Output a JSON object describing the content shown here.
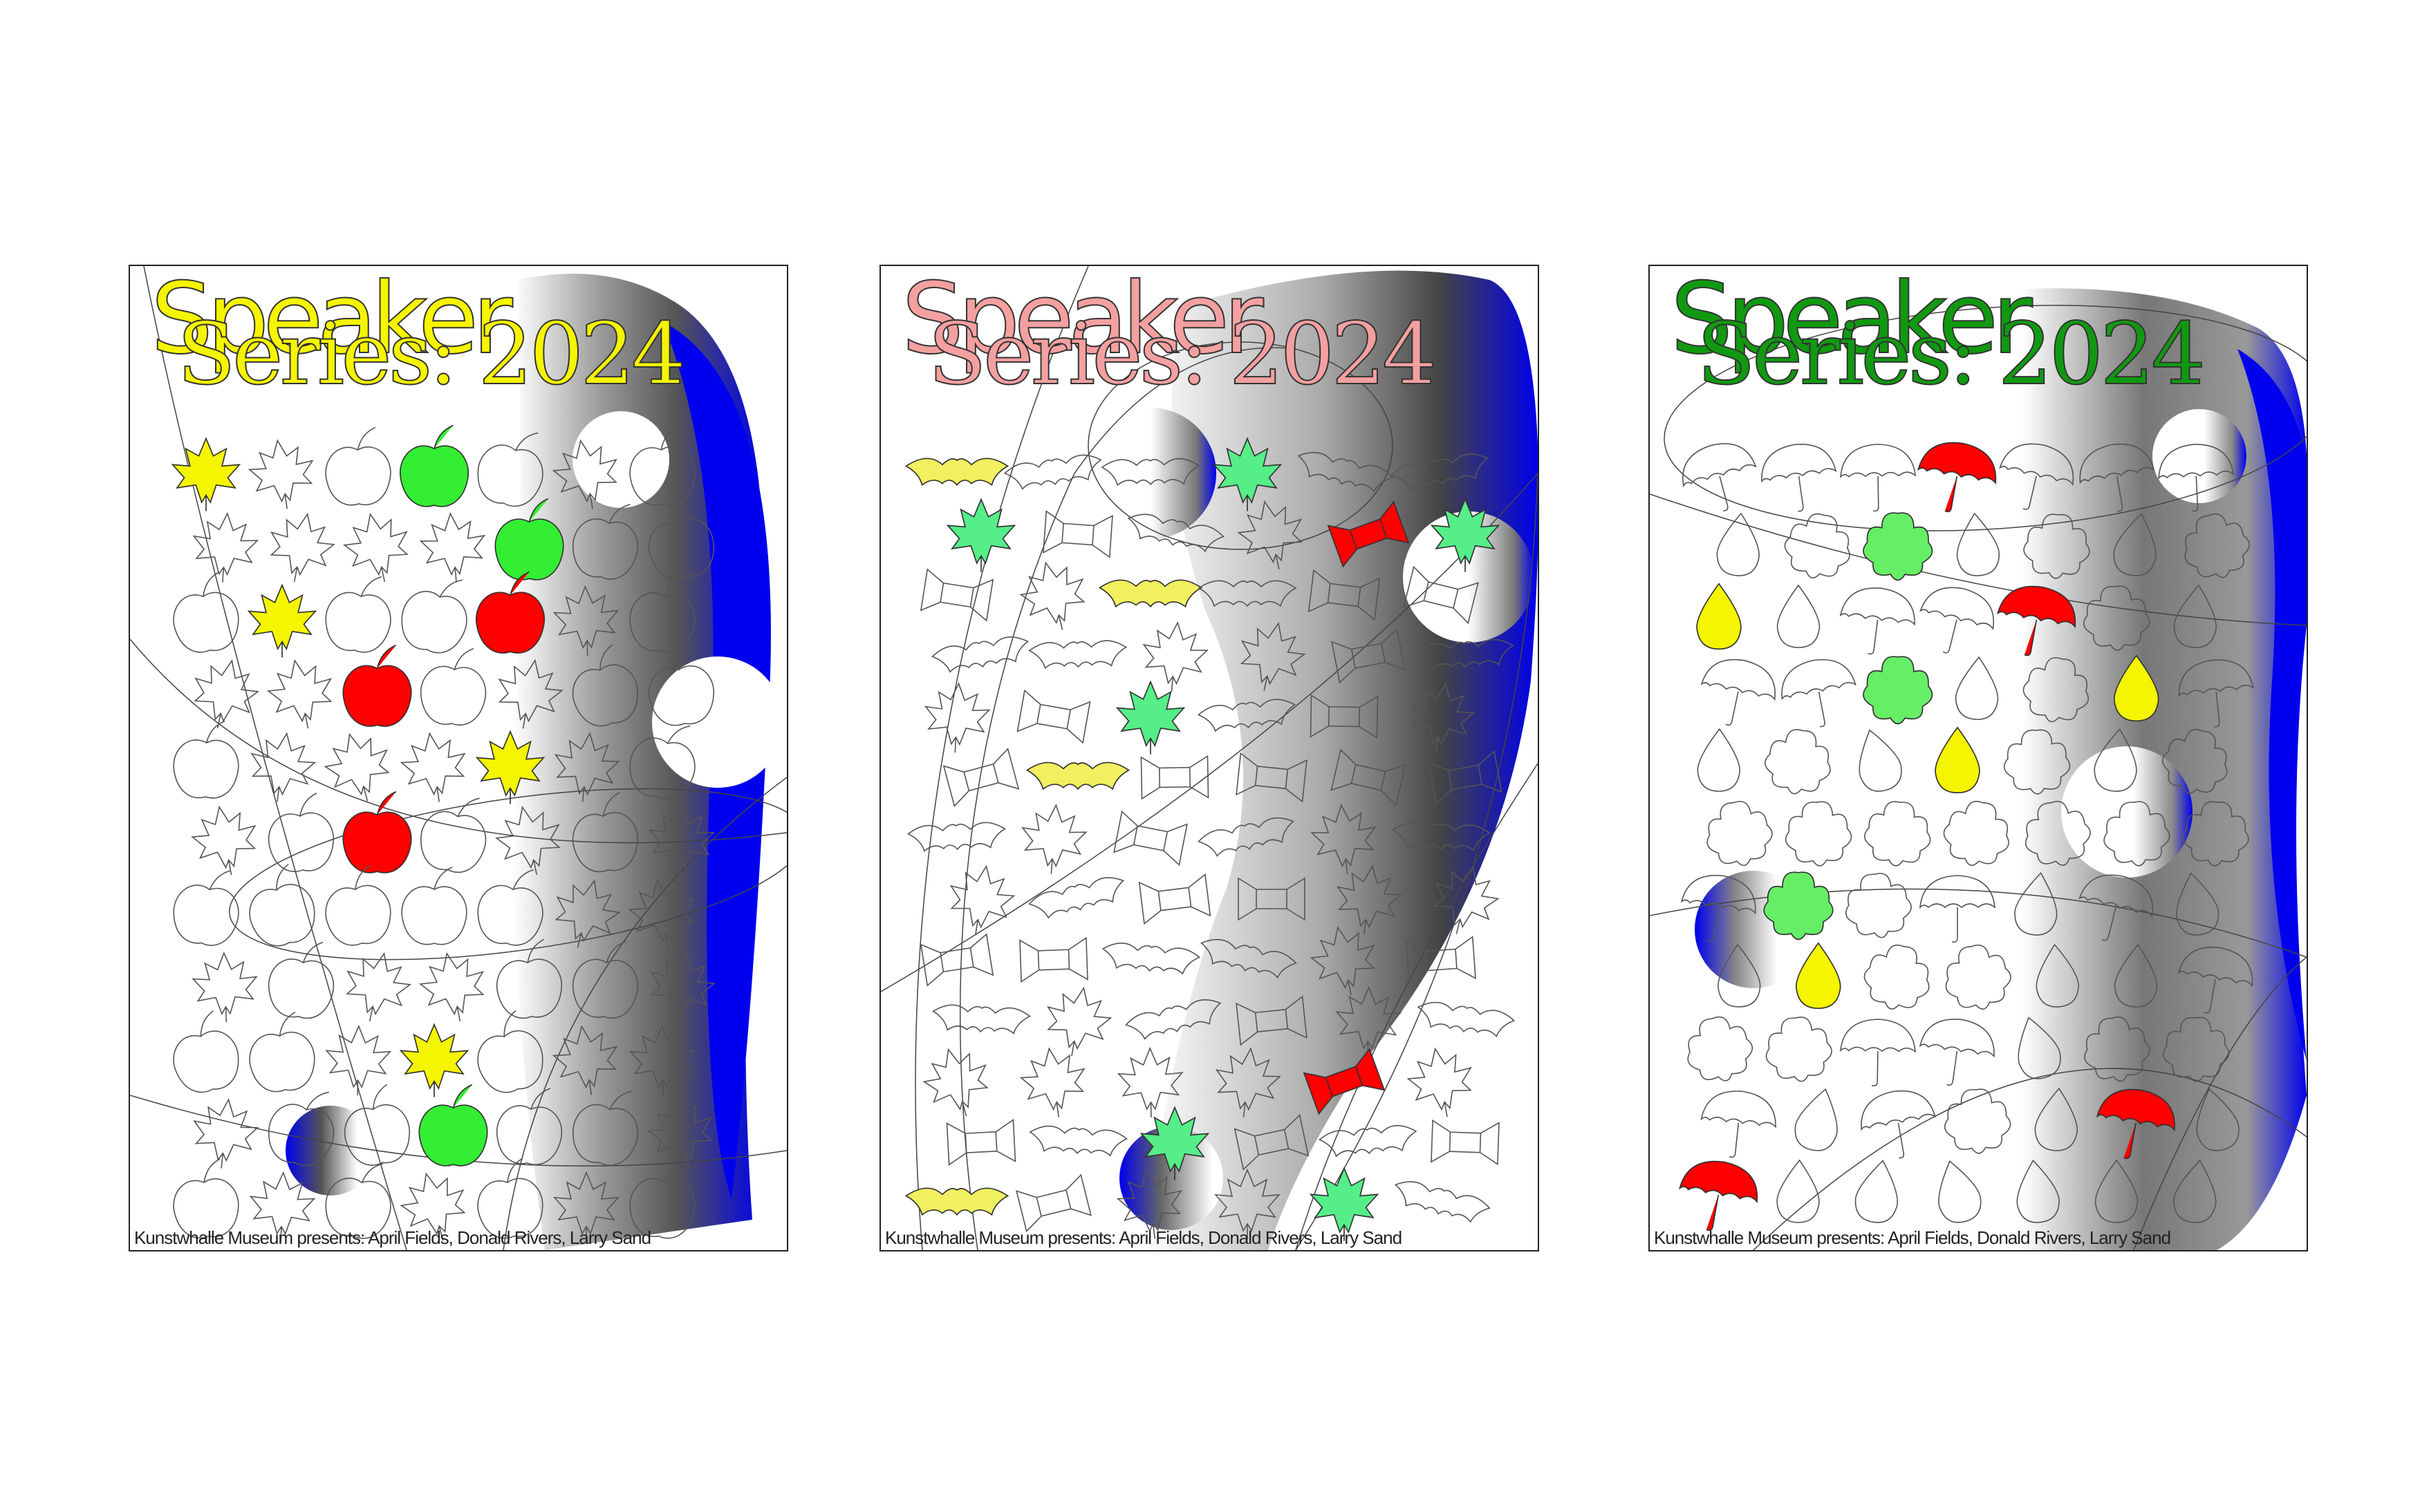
{
  "posters": [
    {
      "title_line_1": "Speaker",
      "title_line_2": "Series: 2024",
      "credit": "Kunstwhalle Museum presents: April Fields, Donald Rivers, Larry Sand",
      "title_color": "#f5f500",
      "motifs": [
        "apple-icon",
        "maple-leaf-icon"
      ],
      "accent_colors": [
        "#ff0000",
        "#33ee33",
        "#f5f500"
      ]
    },
    {
      "title_line_1": "Speaker",
      "title_line_2": "Series: 2024",
      "credit": "Kunstwhalle Museum presents: April Fields, Donald Rivers, Larry Sand",
      "title_color": "#f4a0a0",
      "motifs": [
        "bat-icon",
        "maple-leaf-icon",
        "candy-icon"
      ],
      "accent_colors": [
        "#ff0000",
        "#55ee88",
        "#f0f060"
      ]
    },
    {
      "title_line_1": "Speaker",
      "title_line_2": "Series: 2024",
      "credit": "Kunstwhalle Museum presents: April Fields, Donald Rivers, Larry Sand",
      "title_color": "#119911",
      "motifs": [
        "umbrella-icon",
        "raindrop-icon",
        "flower-icon"
      ],
      "accent_colors": [
        "#ff0000",
        "#66ee66",
        "#f5f500"
      ]
    }
  ],
  "colors": {
    "blob_blue": "#0000ee",
    "outline": "#333333"
  }
}
